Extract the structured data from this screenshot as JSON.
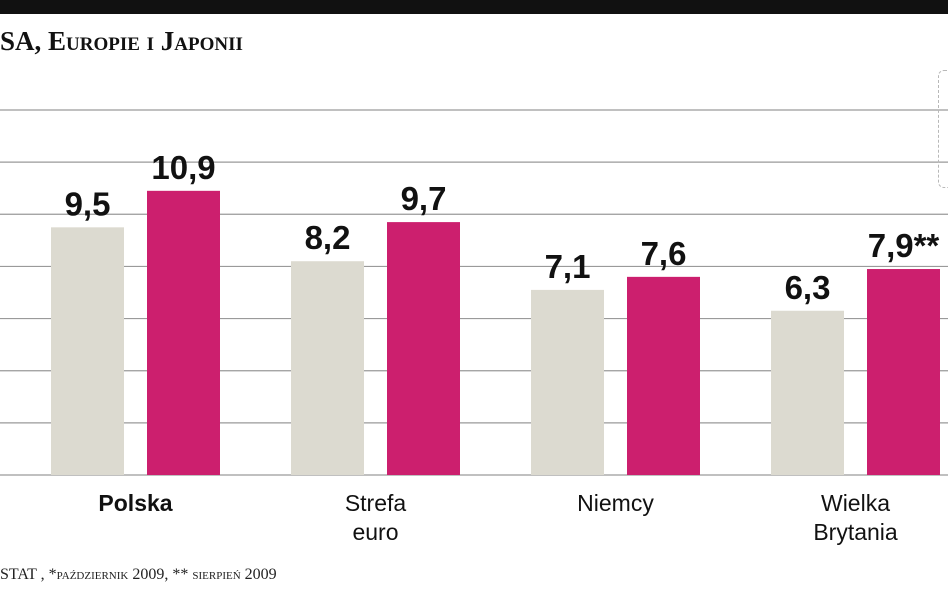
{
  "title": "SA, Europie i Japonii",
  "source_note": "STAT , *październik 2009, ** sierpień 2009",
  "colors": {
    "series_1": "#dcdad0",
    "series_2": "#cc1f6e",
    "gridline": "#9a9a9a",
    "text": "#111111"
  },
  "chart_data": {
    "type": "bar",
    "categories": [
      "Polska",
      "Strefa\neuro",
      "Niemcy",
      "Wielka\nBrytania"
    ],
    "category_emphasis": [
      true,
      false,
      false,
      false
    ],
    "series": [
      {
        "values": [
          9.5,
          8.2,
          7.1,
          6.3
        ],
        "labels": [
          "9,5",
          "8,2",
          "7,1",
          "6,3"
        ]
      },
      {
        "values": [
          10.9,
          9.7,
          7.6,
          7.9
        ],
        "labels": [
          "10,9",
          "9,7",
          "7,6",
          "7,9**"
        ]
      }
    ],
    "ylim": [
      0,
      14
    ],
    "grid": true,
    "legend": "none"
  }
}
